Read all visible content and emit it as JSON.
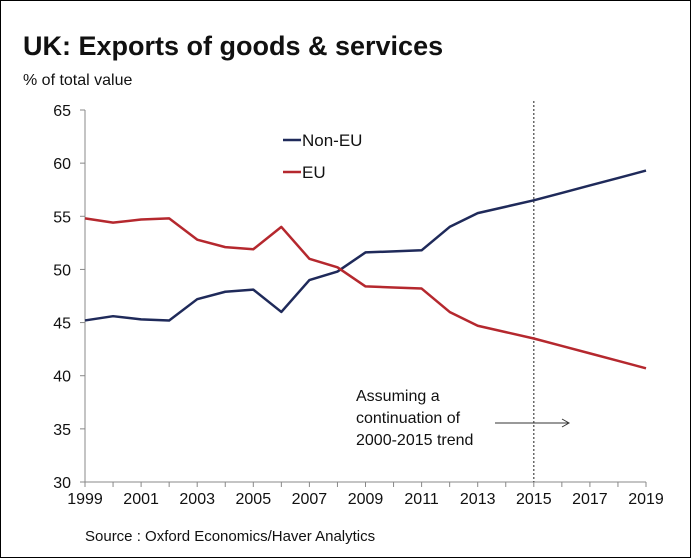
{
  "chart_data": {
    "type": "line",
    "title": "UK: Exports of goods & services",
    "ylabel": "% of total value",
    "xlabel": "",
    "source": "Source : Oxford Economics/Haver Analytics",
    "x": [
      1999,
      2000,
      2001,
      2002,
      2003,
      2004,
      2005,
      2006,
      2007,
      2008,
      2009,
      2010,
      2011,
      2012,
      2013,
      2014,
      2015,
      2016,
      2017,
      2018,
      2019
    ],
    "xticklabels": [
      "1999",
      "2001",
      "2003",
      "2005",
      "2007",
      "2009",
      "2011",
      "2013",
      "2015",
      "2017",
      "2019"
    ],
    "yticks": [
      30,
      35,
      40,
      45,
      50,
      55,
      60,
      65
    ],
    "ylim": [
      30,
      65
    ],
    "xlim": [
      1999,
      2019
    ],
    "grid": false,
    "legend": "top-center",
    "series": [
      {
        "name": "Non-EU",
        "color": "#1f2a5a",
        "values": [
          45.2,
          45.6,
          45.3,
          45.2,
          47.2,
          47.9,
          48.1,
          46.0,
          49.0,
          49.8,
          51.6,
          51.7,
          51.8,
          54.0,
          55.3,
          55.9,
          56.5,
          57.2,
          57.9,
          58.6,
          59.3
        ]
      },
      {
        "name": "EU",
        "color": "#b5282e",
        "values": [
          54.8,
          54.4,
          54.7,
          54.8,
          52.8,
          52.1,
          51.9,
          54.0,
          51.0,
          50.2,
          48.4,
          48.3,
          48.2,
          46.0,
          44.7,
          44.1,
          43.5,
          42.8,
          42.1,
          41.4,
          40.7
        ]
      }
    ],
    "reference_line": {
      "x": 2015,
      "style": "dotted"
    },
    "annotation": {
      "lines": [
        "Assuming a",
        "continuation of",
        "2000-2015 trend"
      ]
    }
  }
}
